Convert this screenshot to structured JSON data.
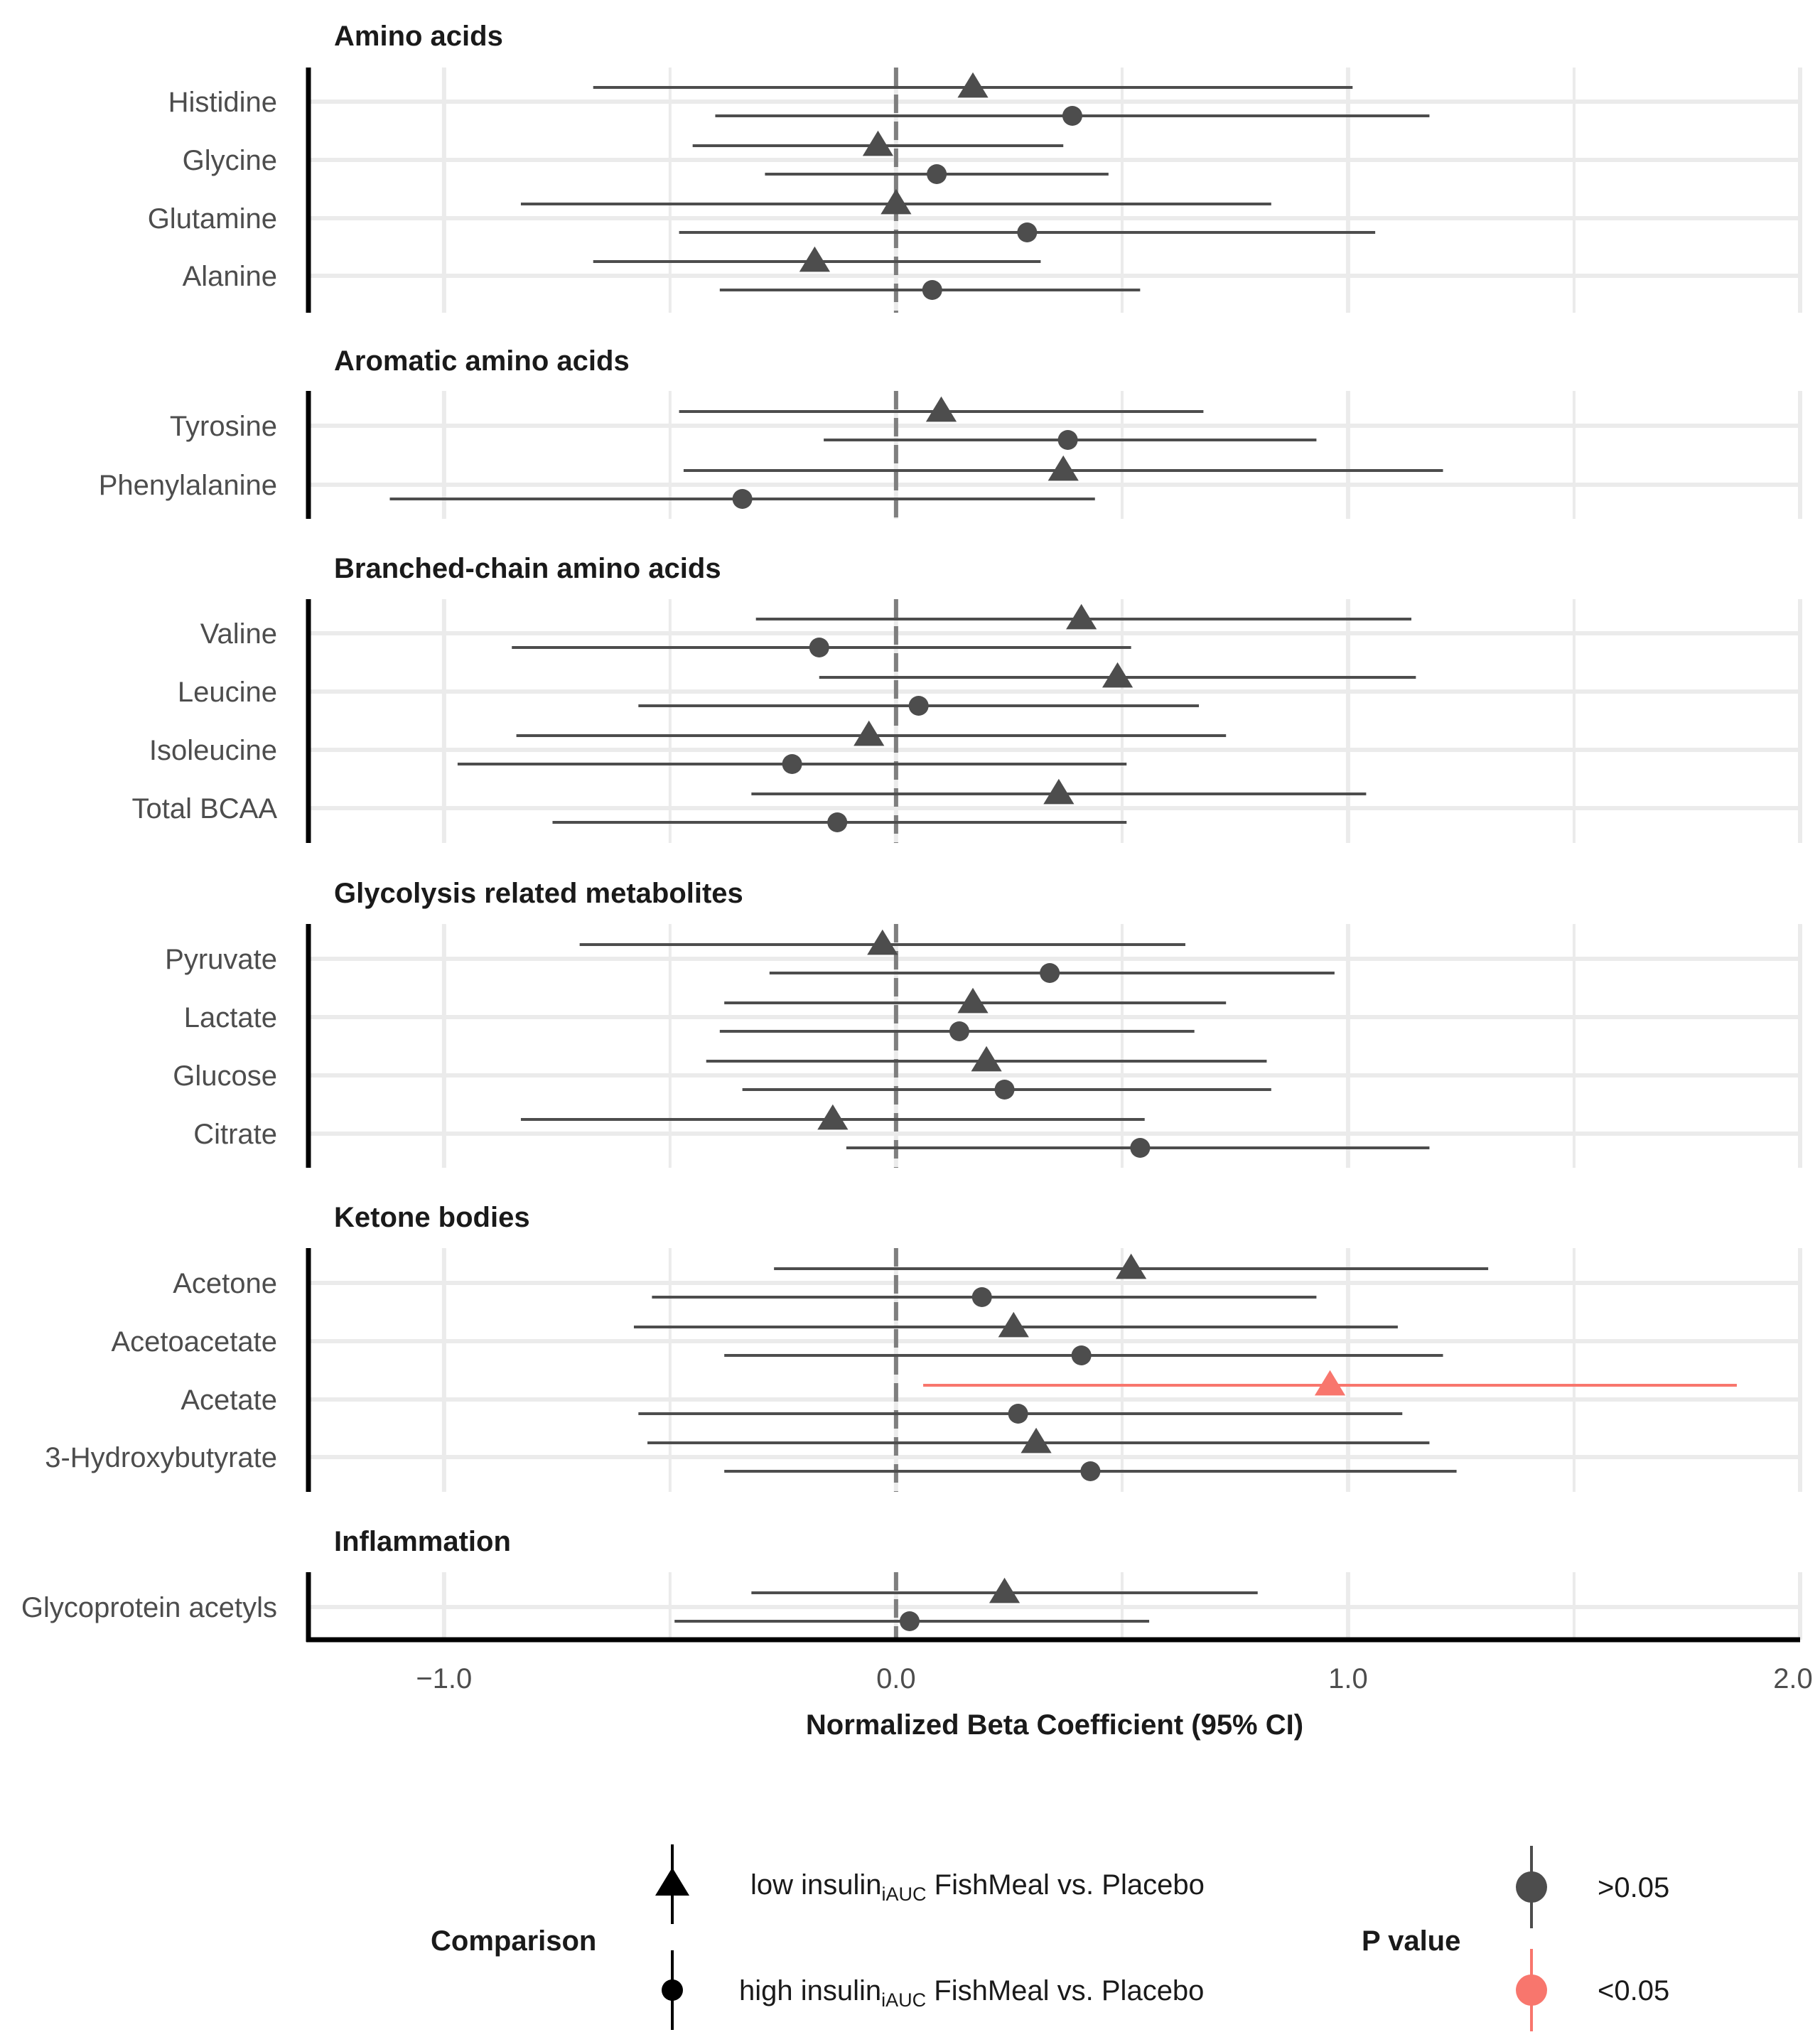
{
  "chart_data": {
    "type": "forest",
    "xlabel": "Normalized Beta Coefficient (95% CI)",
    "xlim": [
      -1.3,
      2.0
    ],
    "xticks": [
      -1.0,
      0.0,
      1.0,
      2.0
    ],
    "xtick_labels": [
      "−1.0",
      "0.0",
      "1.0",
      "2.0"
    ],
    "reference_line": 0,
    "grid": true,
    "colors": {
      "ns": "#4d4d4d",
      "sig": "#f8766d"
    },
    "panels": [
      {
        "title": "Amino acids",
        "rows": [
          {
            "label": "Histidine",
            "estimates": [
              {
                "group": "low",
                "est": 0.17,
                "lo": -0.67,
                "hi": 1.01,
                "p": ">0.05"
              },
              {
                "group": "high",
                "est": 0.39,
                "lo": -0.4,
                "hi": 1.18,
                "p": ">0.05"
              }
            ]
          },
          {
            "label": "Glycine",
            "estimates": [
              {
                "group": "low",
                "est": -0.04,
                "lo": -0.45,
                "hi": 0.37,
                "p": ">0.05"
              },
              {
                "group": "high",
                "est": 0.09,
                "lo": -0.29,
                "hi": 0.47,
                "p": ">0.05"
              }
            ]
          },
          {
            "label": "Glutamine",
            "estimates": [
              {
                "group": "low",
                "est": 0.0,
                "lo": -0.83,
                "hi": 0.83,
                "p": ">0.05"
              },
              {
                "group": "high",
                "est": 0.29,
                "lo": -0.48,
                "hi": 1.06,
                "p": ">0.05"
              }
            ]
          },
          {
            "label": "Alanine",
            "estimates": [
              {
                "group": "low",
                "est": -0.18,
                "lo": -0.67,
                "hi": 0.32,
                "p": ">0.05"
              },
              {
                "group": "high",
                "est": 0.08,
                "lo": -0.39,
                "hi": 0.54,
                "p": ">0.05"
              }
            ]
          }
        ]
      },
      {
        "title": "Aromatic amino acids",
        "rows": [
          {
            "label": "Tyrosine",
            "estimates": [
              {
                "group": "low",
                "est": 0.1,
                "lo": -0.48,
                "hi": 0.68,
                "p": ">0.05"
              },
              {
                "group": "high",
                "est": 0.38,
                "lo": -0.16,
                "hi": 0.93,
                "p": ">0.05"
              }
            ]
          },
          {
            "label": "Phenylalanine",
            "estimates": [
              {
                "group": "low",
                "est": 0.37,
                "lo": -0.47,
                "hi": 1.21,
                "p": ">0.05"
              },
              {
                "group": "high",
                "est": -0.34,
                "lo": -1.12,
                "hi": 0.44,
                "p": ">0.05"
              }
            ]
          }
        ]
      },
      {
        "title": "Branched-chain amino acids",
        "rows": [
          {
            "label": "Valine",
            "estimates": [
              {
                "group": "low",
                "est": 0.41,
                "lo": -0.31,
                "hi": 1.14,
                "p": ">0.05"
              },
              {
                "group": "high",
                "est": -0.17,
                "lo": -0.85,
                "hi": 0.52,
                "p": ">0.05"
              }
            ]
          },
          {
            "label": "Leucine",
            "estimates": [
              {
                "group": "low",
                "est": 0.49,
                "lo": -0.17,
                "hi": 1.15,
                "p": ">0.05"
              },
              {
                "group": "high",
                "est": 0.05,
                "lo": -0.57,
                "hi": 0.67,
                "p": ">0.05"
              }
            ]
          },
          {
            "label": "Isoleucine",
            "estimates": [
              {
                "group": "low",
                "est": -0.06,
                "lo": -0.84,
                "hi": 0.73,
                "p": ">0.05"
              },
              {
                "group": "high",
                "est": -0.23,
                "lo": -0.97,
                "hi": 0.51,
                "p": ">0.05"
              }
            ]
          },
          {
            "label": "Total BCAA",
            "estimates": [
              {
                "group": "low",
                "est": 0.36,
                "lo": -0.32,
                "hi": 1.04,
                "p": ">0.05"
              },
              {
                "group": "high",
                "est": -0.13,
                "lo": -0.76,
                "hi": 0.51,
                "p": ">0.05"
              }
            ]
          }
        ]
      },
      {
        "title": "Glycolysis related metabolites",
        "rows": [
          {
            "label": "Pyruvate",
            "estimates": [
              {
                "group": "low",
                "est": -0.03,
                "lo": -0.7,
                "hi": 0.64,
                "p": ">0.05"
              },
              {
                "group": "high",
                "est": 0.34,
                "lo": -0.28,
                "hi": 0.97,
                "p": ">0.05"
              }
            ]
          },
          {
            "label": "Lactate",
            "estimates": [
              {
                "group": "low",
                "est": 0.17,
                "lo": -0.38,
                "hi": 0.73,
                "p": ">0.05"
              },
              {
                "group": "high",
                "est": 0.14,
                "lo": -0.39,
                "hi": 0.66,
                "p": ">0.05"
              }
            ]
          },
          {
            "label": "Glucose",
            "estimates": [
              {
                "group": "low",
                "est": 0.2,
                "lo": -0.42,
                "hi": 0.82,
                "p": ">0.05"
              },
              {
                "group": "high",
                "est": 0.24,
                "lo": -0.34,
                "hi": 0.83,
                "p": ">0.05"
              }
            ]
          },
          {
            "label": "Citrate",
            "estimates": [
              {
                "group": "low",
                "est": -0.14,
                "lo": -0.83,
                "hi": 0.55,
                "p": ">0.05"
              },
              {
                "group": "high",
                "est": 0.54,
                "lo": -0.11,
                "hi": 1.18,
                "p": ">0.05"
              }
            ]
          }
        ]
      },
      {
        "title": "Ketone bodies",
        "rows": [
          {
            "label": "Acetone",
            "estimates": [
              {
                "group": "low",
                "est": 0.52,
                "lo": -0.27,
                "hi": 1.31,
                "p": ">0.05"
              },
              {
                "group": "high",
                "est": 0.19,
                "lo": -0.54,
                "hi": 0.93,
                "p": ">0.05"
              }
            ]
          },
          {
            "label": "Acetoacetate",
            "estimates": [
              {
                "group": "low",
                "est": 0.26,
                "lo": -0.58,
                "hi": 1.11,
                "p": ">0.05"
              },
              {
                "group": "high",
                "est": 0.41,
                "lo": -0.38,
                "hi": 1.21,
                "p": ">0.05"
              }
            ]
          },
          {
            "label": "Acetate",
            "estimates": [
              {
                "group": "low",
                "est": 0.96,
                "lo": 0.06,
                "hi": 1.86,
                "p": "<0.05"
              },
              {
                "group": "high",
                "est": 0.27,
                "lo": -0.57,
                "hi": 1.12,
                "p": ">0.05"
              }
            ]
          },
          {
            "label": "3-Hydroxybutyrate",
            "estimates": [
              {
                "group": "low",
                "est": 0.31,
                "lo": -0.55,
                "hi": 1.18,
                "p": ">0.05"
              },
              {
                "group": "high",
                "est": 0.43,
                "lo": -0.38,
                "hi": 1.24,
                "p": ">0.05"
              }
            ]
          }
        ]
      },
      {
        "title": "Inflammation",
        "rows": [
          {
            "label": "Glycoprotein acetyls",
            "estimates": [
              {
                "group": "low",
                "est": 0.24,
                "lo": -0.32,
                "hi": 0.8,
                "p": ">0.05"
              },
              {
                "group": "high",
                "est": 0.03,
                "lo": -0.49,
                "hi": 0.56,
                "p": ">0.05"
              }
            ]
          }
        ]
      }
    ],
    "legend": {
      "placement": "bottom",
      "comparison": {
        "title": "Comparison",
        "items": [
          {
            "group": "low",
            "shape": "triangle",
            "prefix": "low insulin",
            "sub": "iAUC",
            "suffix": " FishMeal vs. Placebo"
          },
          {
            "group": "high",
            "shape": "circle",
            "prefix": "high insulin",
            "sub": "iAUC",
            "suffix": " FishMeal vs. Placebo"
          }
        ]
      },
      "pvalue": {
        "title": "P value",
        "items": [
          {
            "label": ">0.05",
            "key": "ns"
          },
          {
            "label": "<0.05",
            "key": "sig"
          }
        ]
      }
    }
  }
}
